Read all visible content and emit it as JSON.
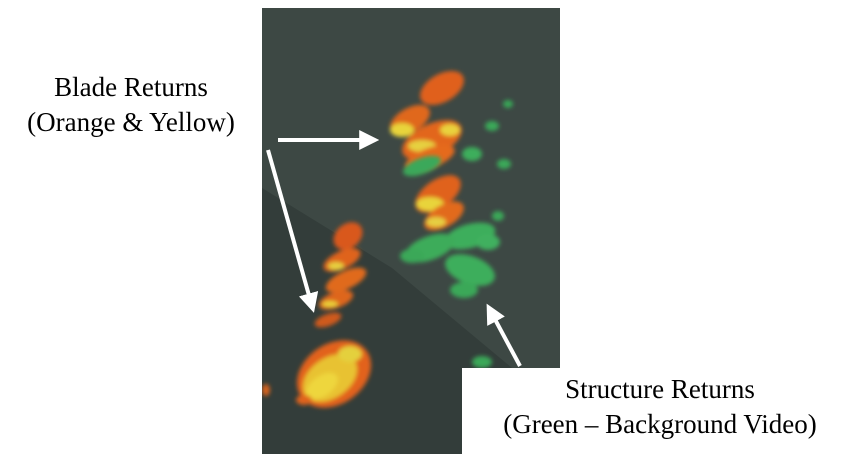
{
  "annotations": {
    "blade": {
      "line1": "Blade Returns",
      "line2": "(Orange & Yellow)"
    },
    "structure": {
      "line1": "Structure Returns",
      "line2": "(Green – Background Video)"
    }
  },
  "colors": {
    "display_background": "#3c4743",
    "blade_return_orange": "#e86a1c",
    "blade_return_yellow": "#e8d43a",
    "structure_return_green": "#3fae5c",
    "arrow": "#ffffff"
  }
}
